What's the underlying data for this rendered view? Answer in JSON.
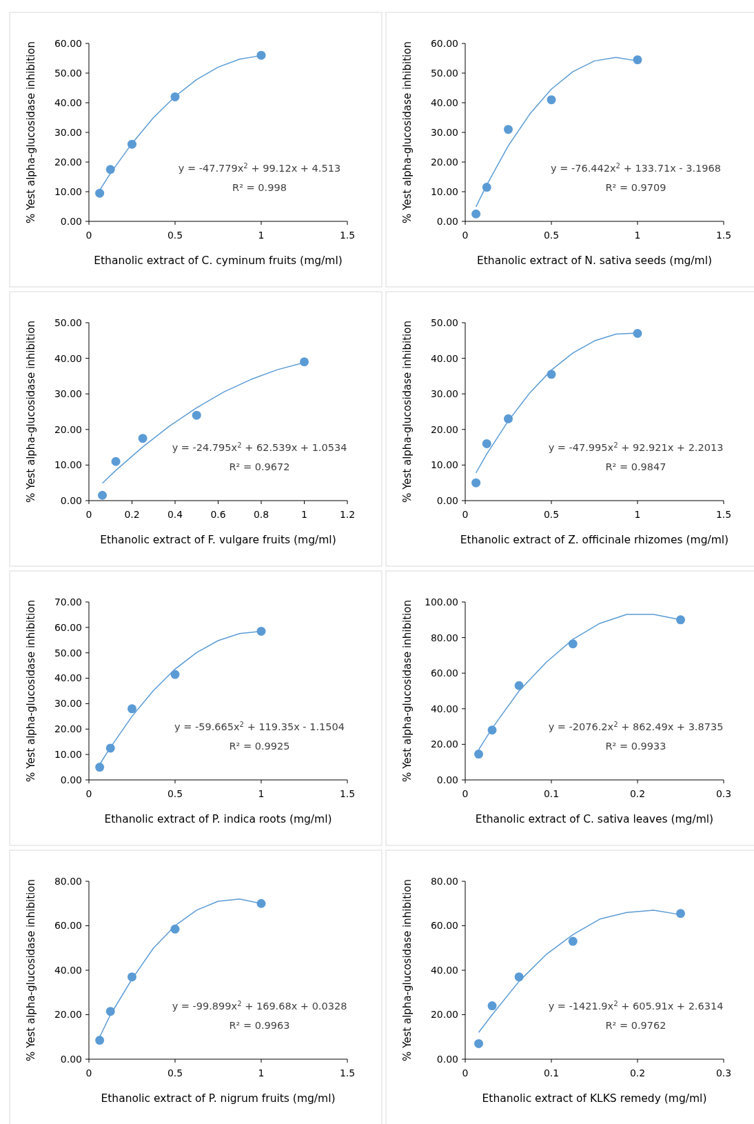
{
  "chart_data": [
    {
      "type": "scatter",
      "xlabel": "Ethanolic extract of  C. cyminum fruits (mg/ml)",
      "ylabel": "% Yest alpha-glucosidase inhibition",
      "annotations": [
        "y = -47.779x$^{2}$ + 99.12x + 4.513",
        "R² = 0.998"
      ],
      "xlim": [
        0,
        1.5
      ],
      "xticks": [
        0,
        0.5,
        1,
        1.5
      ],
      "ylim": [
        0,
        60
      ],
      "yticks": [
        {
          "value": 0,
          "label": "0.00"
        },
        {
          "value": 10,
          "label": "10.00"
        },
        {
          "value": 20,
          "label": "20.00"
        },
        {
          "value": 30,
          "label": "30.00"
        },
        {
          "value": 40,
          "label": "40.00"
        },
        {
          "value": 50,
          "label": "50.00"
        },
        {
          "value": 60,
          "label": "60.00"
        }
      ],
      "series": [
        {
          "type": "line",
          "marker": "none",
          "color": "#5b9bd5",
          "x": [
            0.0625,
            0.125,
            0.25,
            0.375,
            0.5,
            0.625,
            0.75,
            0.875,
            1
          ],
          "values": [
            10.5,
            16.2,
            26.3,
            35,
            42.1,
            47.8,
            52,
            54.7,
            55.9
          ]
        },
        {
          "marker": "circle",
          "color": "#5b9bd5",
          "x": [
            0.0625,
            0.125,
            0.25,
            0.5,
            1
          ],
          "values": [
            9.5,
            17.5,
            26,
            42,
            56
          ]
        }
      ]
    },
    {
      "type": "scatter",
      "xlabel": "Ethanolic extract of N. sativa seeds (mg/ml)",
      "ylabel": "% Yest alpha-glucosidase inhibition",
      "annotations": [
        "y = -76.442x$^{2}$ + 133.71x - 3.1968",
        "R² = 0.9709"
      ],
      "xlim": [
        0,
        1.5
      ],
      "xticks": [
        0,
        0.5,
        1,
        1.5
      ],
      "ylim": [
        0,
        60
      ],
      "yticks": [
        {
          "value": 0,
          "label": "0.00"
        },
        {
          "value": 10,
          "label": "10.00"
        },
        {
          "value": 20,
          "label": "20.00"
        },
        {
          "value": 30,
          "label": "30.00"
        },
        {
          "value": 40,
          "label": "40.00"
        },
        {
          "value": 50,
          "label": "50.00"
        },
        {
          "value": 60,
          "label": "60.00"
        }
      ],
      "series": [
        {
          "type": "line",
          "marker": "none",
          "color": "#5b9bd5",
          "x": [
            0.0625,
            0.125,
            0.25,
            0.375,
            0.5,
            0.625,
            0.75,
            0.875,
            1
          ],
          "values": [
            4.9,
            12.3,
            25.5,
            36.2,
            44.6,
            50.5,
            54.1,
            55.3,
            54.1
          ]
        },
        {
          "marker": "circle",
          "color": "#5b9bd5",
          "x": [
            0.0625,
            0.125,
            0.25,
            0.5,
            1
          ],
          "values": [
            2.5,
            11.5,
            31,
            41,
            54.5
          ]
        }
      ]
    },
    {
      "type": "scatter",
      "xlabel": "Ethanolic extract of F. vulgare fruits (mg/ml)",
      "ylabel": "% Yest alpha-glucosidase inhibition",
      "annotations": [
        "y = -24.795x$^{2}$ + 62.539x + 1.0534",
        "R² = 0.9672"
      ],
      "xlim": [
        0,
        1.2
      ],
      "xticks": [
        0,
        0.2,
        0.4,
        0.6,
        0.8,
        1,
        1.2
      ],
      "ylim": [
        0,
        50
      ],
      "yticks": [
        {
          "value": 0,
          "label": "0.00"
        },
        {
          "value": 10,
          "label": "10.00"
        },
        {
          "value": 20,
          "label": "20.00"
        },
        {
          "value": 30,
          "label": "30.00"
        },
        {
          "value": 40,
          "label": "40.00"
        },
        {
          "value": 50,
          "label": "50.00"
        }
      ],
      "series": [
        {
          "type": "line",
          "marker": "none",
          "color": "#5b9bd5",
          "x": [
            0.0625,
            0.125,
            0.25,
            0.375,
            0.5,
            0.625,
            0.75,
            0.875,
            1
          ],
          "values": [
            4.9,
            8.5,
            15.1,
            21,
            26.1,
            30.5,
            34,
            36.8,
            38.8
          ]
        },
        {
          "marker": "circle",
          "color": "#5b9bd5",
          "x": [
            0.0625,
            0.125,
            0.25,
            0.5,
            1
          ],
          "values": [
            1.5,
            11,
            17.5,
            24,
            39
          ]
        }
      ]
    },
    {
      "type": "scatter",
      "xlabel": "Ethanolic extract of Z. officinale rhizomes (mg/ml)",
      "ylabel": "% Yest alpha-glucosidase inhibition",
      "annotations": [
        "y = -47.995x$^{2}$ + 92.921x + 2.2013",
        "R² = 0.9847"
      ],
      "xlim": [
        0,
        1.5
      ],
      "xticks": [
        0,
        0.5,
        1,
        1.5
      ],
      "ylim": [
        0,
        50
      ],
      "yticks": [
        {
          "value": 0,
          "label": "0.00"
        },
        {
          "value": 10,
          "label": "10.00"
        },
        {
          "value": 20,
          "label": "20.00"
        },
        {
          "value": 30,
          "label": "30.00"
        },
        {
          "value": 40,
          "label": "40.00"
        },
        {
          "value": 50,
          "label": "50.00"
        }
      ],
      "series": [
        {
          "type": "line",
          "marker": "none",
          "color": "#5b9bd5",
          "x": [
            0.0625,
            0.125,
            0.25,
            0.375,
            0.5,
            0.625,
            0.75,
            0.875,
            1
          ],
          "values": [
            7.8,
            13.1,
            22.4,
            30.3,
            36.7,
            41.5,
            44.9,
            46.8,
            47.1
          ]
        },
        {
          "marker": "circle",
          "color": "#5b9bd5",
          "x": [
            0.0625,
            0.125,
            0.25,
            0.5,
            1
          ],
          "values": [
            5,
            16,
            23,
            35.5,
            47
          ]
        }
      ]
    },
    {
      "type": "scatter",
      "xlabel": "Ethanolic extract of  P. indica roots (mg/ml)",
      "ylabel": "% Yest alpha-glucosidase inhibition",
      "annotations": [
        "y = -59.665x$^{2}$ + 119.35x - 1.1504",
        "R² = 0.9925"
      ],
      "xlim": [
        0,
        1.5
      ],
      "xticks": [
        0,
        0.5,
        1,
        1.5
      ],
      "ylim": [
        0,
        70
      ],
      "yticks": [
        {
          "value": 0,
          "label": "0.00"
        },
        {
          "value": 10,
          "label": "10.00"
        },
        {
          "value": 20,
          "label": "20.00"
        },
        {
          "value": 30,
          "label": "30.00"
        },
        {
          "value": 40,
          "label": "40.00"
        },
        {
          "value": 50,
          "label": "50.00"
        },
        {
          "value": 60,
          "label": "60.00"
        },
        {
          "value": 70,
          "label": "70.00"
        }
      ],
      "series": [
        {
          "type": "line",
          "marker": "none",
          "color": "#5b9bd5",
          "x": [
            0.0625,
            0.125,
            0.25,
            0.375,
            0.5,
            0.625,
            0.75,
            0.875,
            1
          ],
          "values": [
            6.1,
            12.8,
            25,
            35.2,
            43.6,
            50.1,
            54.8,
            57.6,
            58.5
          ]
        },
        {
          "marker": "circle",
          "color": "#5b9bd5",
          "x": [
            0.0625,
            0.125,
            0.25,
            0.5,
            1
          ],
          "values": [
            5,
            12.5,
            28,
            41.5,
            58.5
          ]
        }
      ]
    },
    {
      "type": "scatter",
      "xlabel": "Ethanolic extract of C. sativa leaves  (mg/ml)",
      "ylabel": "% Yest alpha-glucosidase inhibition",
      "annotations": [
        "y = -2076.2x$^{2}$ + 862.49x + 3.8735",
        "R² = 0.9933"
      ],
      "xlim": [
        0,
        0.3
      ],
      "xticks": [
        0,
        0.1,
        0.2,
        0.3
      ],
      "ylim": [
        0,
        100
      ],
      "yticks": [
        {
          "value": 0,
          "label": "0.00"
        },
        {
          "value": 20,
          "label": "20.00"
        },
        {
          "value": 40,
          "label": "40.00"
        },
        {
          "value": 60,
          "label": "60.00"
        },
        {
          "value": 80,
          "label": "80.00"
        },
        {
          "value": 100,
          "label": "100.00"
        }
      ],
      "series": [
        {
          "type": "line",
          "marker": "none",
          "color": "#5b9bd5",
          "x": [
            0.015625,
            0.03125,
            0.0625,
            0.09375,
            0.125,
            0.15625,
            0.1875,
            0.21875,
            0.25
          ],
          "values": [
            17,
            29,
            50,
            66,
            79,
            88,
            93,
            93,
            90
          ]
        },
        {
          "marker": "circle",
          "color": "#5b9bd5",
          "x": [
            0.015625,
            0.03125,
            0.0625,
            0.125,
            0.25
          ],
          "values": [
            14.5,
            28,
            53,
            76.5,
            90
          ]
        }
      ]
    },
    {
      "type": "scatter",
      "xlabel": "Ethanolic extract of  P. nigrum fruits (mg/ml)",
      "ylabel": "% Yest alpha-glucosidase inhibition",
      "annotations": [
        "y = -99.899x$^{2}$ + 169.68x + 0.0328",
        "R² = 0.9963"
      ],
      "xlim": [
        0,
        1.5
      ],
      "xticks": [
        0,
        0.5,
        1,
        1.5
      ],
      "ylim": [
        0,
        80
      ],
      "yticks": [
        {
          "value": 0,
          "label": "0.00"
        },
        {
          "value": 20,
          "label": "20.00"
        },
        {
          "value": 40,
          "label": "40.00"
        },
        {
          "value": 60,
          "label": "60.00"
        },
        {
          "value": 80,
          "label": "80.00"
        }
      ],
      "series": [
        {
          "type": "line",
          "marker": "none",
          "color": "#5b9bd5",
          "x": [
            0.0625,
            0.125,
            0.25,
            0.375,
            0.5,
            0.625,
            0.75,
            0.875,
            1
          ],
          "values": [
            10,
            20,
            36,
            50,
            60,
            67,
            71,
            72,
            70
          ]
        },
        {
          "marker": "circle",
          "color": "#5b9bd5",
          "x": [
            0.0625,
            0.125,
            0.25,
            0.5,
            1
          ],
          "values": [
            8.5,
            21.5,
            37,
            58.5,
            70
          ]
        }
      ]
    },
    {
      "type": "scatter",
      "xlabel": "Ethanolic extract of KLKS remedy (mg/ml)",
      "ylabel": "% Yest alpha-glucosidase inhibition",
      "annotations": [
        "y = -1421.9x$^{2}$ + 605.91x + 2.6314",
        "R² = 0.9762"
      ],
      "xlim": [
        0,
        0.3
      ],
      "xticks": [
        0,
        0.1,
        0.2,
        0.3
      ],
      "ylim": [
        0,
        80
      ],
      "yticks": [
        {
          "value": 0,
          "label": "0.00"
        },
        {
          "value": 20,
          "label": "20.00"
        },
        {
          "value": 40,
          "label": "40.00"
        },
        {
          "value": 60,
          "label": "60.00"
        },
        {
          "value": 80,
          "label": "80.00"
        }
      ],
      "series": [
        {
          "type": "line",
          "marker": "none",
          "color": "#5b9bd5",
          "x": [
            0.015625,
            0.03125,
            0.0625,
            0.09375,
            0.125,
            0.15625,
            0.1875,
            0.21875,
            0.25
          ],
          "values": [
            12,
            20,
            35,
            47,
            56,
            63,
            66,
            67,
            65
          ]
        },
        {
          "marker": "circle",
          "color": "#5b9bd5",
          "x": [
            0.015625,
            0.03125,
            0.0625,
            0.125,
            0.25
          ],
          "values": [
            7,
            24,
            37,
            53,
            65.5
          ]
        }
      ]
    }
  ]
}
